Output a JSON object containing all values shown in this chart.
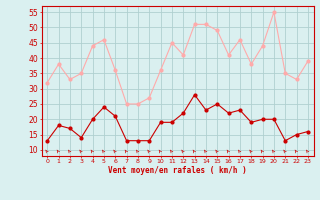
{
  "hours": [
    0,
    1,
    2,
    3,
    4,
    5,
    6,
    7,
    8,
    9,
    10,
    11,
    12,
    13,
    14,
    15,
    16,
    17,
    18,
    19,
    20,
    21,
    22,
    23
  ],
  "mean_wind": [
    13,
    18,
    17,
    14,
    20,
    24,
    21,
    13,
    13,
    13,
    19,
    19,
    22,
    28,
    23,
    25,
    22,
    23,
    19,
    20,
    20,
    13,
    15,
    16
  ],
  "gust_wind": [
    32,
    38,
    33,
    35,
    44,
    46,
    36,
    25,
    25,
    27,
    36,
    45,
    41,
    51,
    51,
    49,
    41,
    46,
    38,
    44,
    55,
    35,
    33,
    39
  ],
  "bg_color": "#daf0f0",
  "grid_color": "#b0d0d0",
  "mean_color": "#cc0000",
  "gust_color": "#ffaaaa",
  "xlabel": "Vent moyen/en rafales ( km/h )",
  "xlabel_color": "#cc0000",
  "yticks": [
    10,
    15,
    20,
    25,
    30,
    35,
    40,
    45,
    50,
    55
  ],
  "ylim": [
    8,
    57
  ],
  "xlim": [
    -0.5,
    23.5
  ]
}
